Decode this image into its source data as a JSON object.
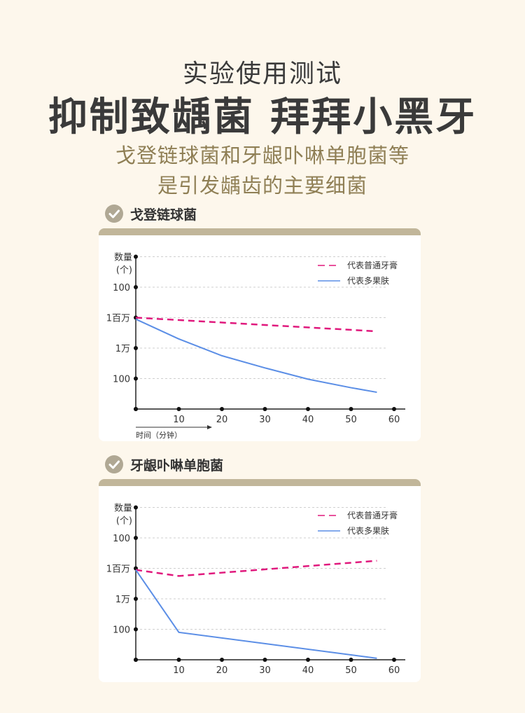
{
  "header": {
    "small_title": "实验使用测试",
    "big_title": "抑制致龋菌 拜拜小黑牙",
    "subtitle_line1": "戈登链球菌和牙龈卟啉单胞菌等",
    "subtitle_line2": "是引发龋齿的主要细菌"
  },
  "colors": {
    "background": "#fdf7ec",
    "accent_gold": "#8f7f55",
    "card_bar": "#c1b69a",
    "check_badge": "#b0a894",
    "series_regular": "#e0197d",
    "series_product": "#5b8ee6"
  },
  "sections": [
    {
      "title": "戈登链球菌",
      "icon": "check-circle-icon"
    },
    {
      "title": "牙龈卟啉单胞菌",
      "icon": "check-circle-icon"
    }
  ],
  "chart_data": [
    {
      "type": "line",
      "ylabel_line1": "数量",
      "ylabel_line2": "(个)",
      "ytick_labels": [
        "100",
        "1百万",
        "1万",
        "100"
      ],
      "xticks": [
        10,
        20,
        30,
        40,
        50,
        60
      ],
      "xlim": [
        0,
        60
      ],
      "xlabel": "时间（分钟）",
      "grid": true,
      "legend_position": "top-right",
      "ylevels_note": "y values are expressed in tick-index units: 0 = bottom axis, 1 = lower '100', 2 = '1万', 3 = '1百万', 4 = upper '100', 5 = top",
      "series": [
        {
          "name": "代表普通牙膏",
          "style": "dashed",
          "color": "#e0197d",
          "x": [
            0,
            56
          ],
          "y": [
            3.0,
            2.55
          ]
        },
        {
          "name": "代表多果肤",
          "style": "solid",
          "color": "#5b8ee6",
          "x": [
            0,
            10,
            20,
            30,
            40,
            50,
            56
          ],
          "y": [
            2.95,
            2.3,
            1.75,
            1.35,
            0.98,
            0.7,
            0.55
          ]
        }
      ]
    },
    {
      "type": "line",
      "ylabel_line1": "数量",
      "ylabel_line2": "(个)",
      "ytick_labels": [
        "100",
        "1百万",
        "1万",
        "100"
      ],
      "xticks": [
        10,
        20,
        30,
        40,
        50,
        60
      ],
      "xlim": [
        0,
        60
      ],
      "xlabel": "",
      "grid": true,
      "legend_position": "top-right",
      "series": [
        {
          "name": "代表普通牙膏",
          "style": "dashed",
          "color": "#e0197d",
          "x": [
            0,
            10,
            56
          ],
          "y": [
            2.95,
            2.75,
            3.25
          ]
        },
        {
          "name": "代表多果肤",
          "style": "solid",
          "color": "#5b8ee6",
          "x": [
            0,
            10,
            56
          ],
          "y": [
            2.95,
            0.9,
            0.05
          ]
        }
      ]
    }
  ]
}
